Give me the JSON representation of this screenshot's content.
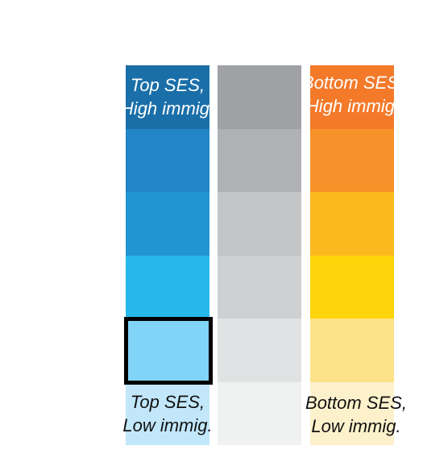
{
  "legend": {
    "labels": {
      "top_left": [
        "Top SES,",
        "High immig."
      ],
      "top_right": [
        "Bottom SES,",
        "High immig."
      ],
      "bottom_left": [
        "Top SES,",
        "Low immig."
      ],
      "bottom_right": [
        "Bottom SES,",
        "Low immig."
      ]
    },
    "columns": [
      {
        "name": "top-ses",
        "colors": [
          "#1a6fa9",
          "#2185c8",
          "#2194d4",
          "#26b8ec",
          "#80d4f8",
          "#c2e7fb"
        ]
      },
      {
        "name": "middle",
        "colors": [
          "#a0a1a4",
          "#b0b1b4",
          "#c4c5c7",
          "#cfd0d2",
          "#e1e2e3",
          "#f0f1f1"
        ]
      },
      {
        "name": "bottom-ses",
        "colors": [
          "#f47a2a",
          "#f7922a",
          "#fcb91e",
          "#fed40b",
          "#fce38a",
          "#fdf1cc"
        ]
      }
    ],
    "highlight": {
      "column": 0,
      "row": 4
    },
    "highlight_color": "#000000"
  }
}
